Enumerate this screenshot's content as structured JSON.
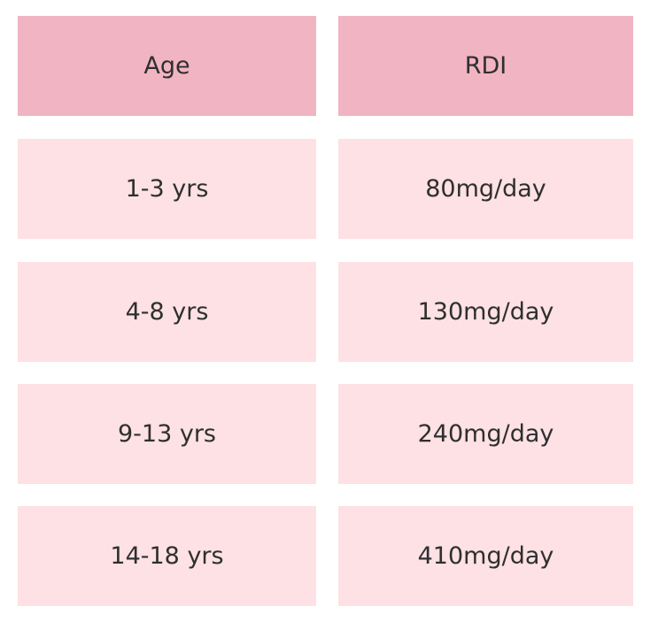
{
  "table": {
    "header": [
      "Age",
      "RDI"
    ],
    "rows": [
      [
        "1-3 yrs",
        "80mg/day"
      ],
      [
        "4-8 yrs",
        "130mg/day"
      ],
      [
        "9-13 yrs",
        "240mg/day"
      ],
      [
        "14-18 yrs",
        "410mg/day"
      ]
    ]
  }
}
